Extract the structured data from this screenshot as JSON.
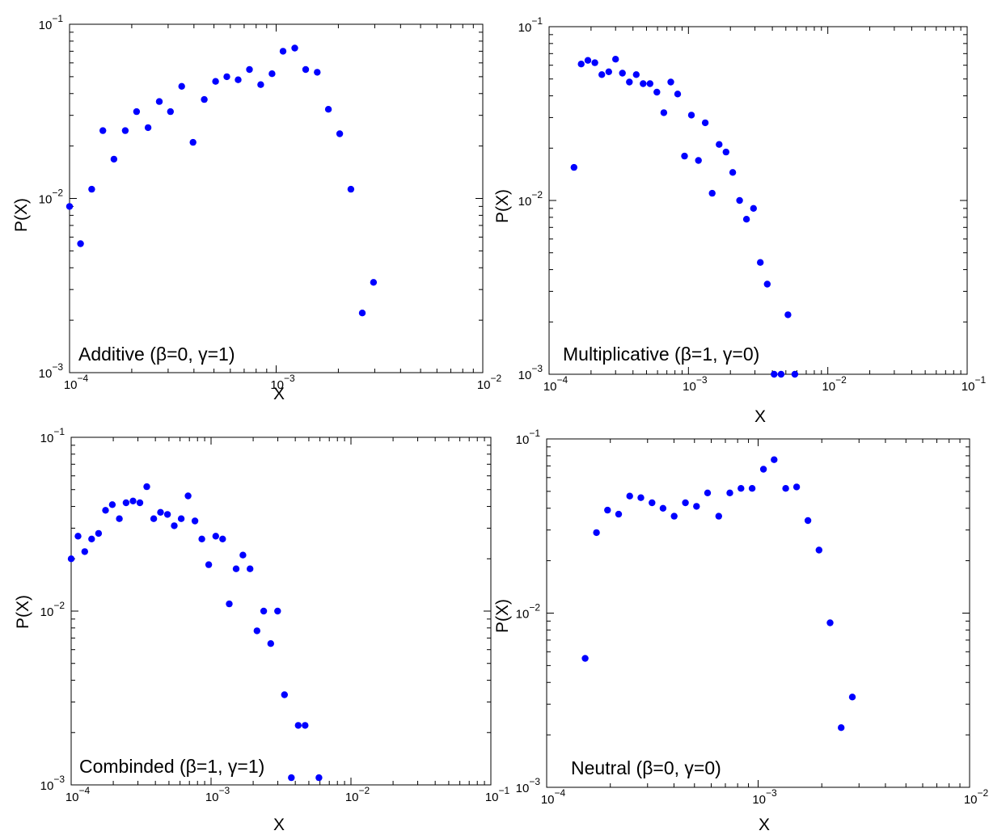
{
  "chart_data": [
    {
      "type": "scatter",
      "annotation": "Additive (β=0, γ=1)",
      "xlabel": "X",
      "ylabel": "P(X)",
      "xscale": "log",
      "yscale": "log",
      "xlim": [
        0.0001,
        0.01
      ],
      "ylim": [
        0.001,
        0.1
      ],
      "x_tick_labels": [
        {
          "base": "10",
          "exp": "−4"
        },
        {
          "base": "10",
          "exp": "−3"
        },
        {
          "base": "10",
          "exp": "−2"
        }
      ],
      "y_tick_labels": [
        {
          "base": "10",
          "exp": "−3"
        },
        {
          "base": "10",
          "exp": "−2"
        },
        {
          "base": "10",
          "exp": "−1"
        }
      ],
      "grid": false,
      "marker_color": "#0000ff",
      "points": [
        [
          0.0001,
          0.009
        ],
        [
          0.000113,
          0.0055
        ],
        [
          0.000128,
          0.0113
        ],
        [
          0.000145,
          0.0245
        ],
        [
          0.000164,
          0.0168
        ],
        [
          0.000186,
          0.0245
        ],
        [
          0.000211,
          0.0315
        ],
        [
          0.00024,
          0.0255
        ],
        [
          0.000272,
          0.036
        ],
        [
          0.000308,
          0.0315
        ],
        [
          0.000349,
          0.044
        ],
        [
          0.000396,
          0.021
        ],
        [
          0.000449,
          0.037
        ],
        [
          0.000509,
          0.047
        ],
        [
          0.000577,
          0.05
        ],
        [
          0.000655,
          0.048
        ],
        [
          0.000743,
          0.055
        ],
        [
          0.000842,
          0.045
        ],
        [
          0.000955,
          0.052
        ],
        [
          0.00108,
          0.07
        ],
        [
          0.00123,
          0.073
        ],
        [
          0.00139,
          0.055
        ],
        [
          0.00158,
          0.053
        ],
        [
          0.00179,
          0.0325
        ],
        [
          0.00203,
          0.0235
        ],
        [
          0.0023,
          0.0113
        ],
        [
          0.00261,
          0.0022
        ],
        [
          0.00296,
          0.0033
        ]
      ]
    },
    {
      "type": "scatter",
      "annotation": "Multiplicative (β=1, γ=0)",
      "xlabel": "X",
      "ylabel": "P(X)",
      "xscale": "log",
      "yscale": "log",
      "xlim": [
        0.0001,
        0.1
      ],
      "ylim": [
        0.001,
        0.1
      ],
      "x_tick_labels": [
        {
          "base": "10",
          "exp": "−4"
        },
        {
          "base": "10",
          "exp": "−3"
        },
        {
          "base": "10",
          "exp": "−2"
        },
        {
          "base": "10",
          "exp": "−1"
        }
      ],
      "y_tick_labels": [
        {
          "base": "10",
          "exp": "−3"
        },
        {
          "base": "10",
          "exp": "−2"
        },
        {
          "base": "10",
          "exp": "−1"
        }
      ],
      "grid": false,
      "marker_color": "#0000ff",
      "points": [
        [
          0.000151,
          0.0155
        ],
        [
          0.00017,
          0.061
        ],
        [
          0.00019,
          0.064
        ],
        [
          0.000213,
          0.062
        ],
        [
          0.000239,
          0.053
        ],
        [
          0.000268,
          0.055
        ],
        [
          0.0003,
          0.065
        ],
        [
          0.000336,
          0.054
        ],
        [
          0.000377,
          0.048
        ],
        [
          0.000422,
          0.053
        ],
        [
          0.000473,
          0.047
        ],
        [
          0.00053,
          0.047
        ],
        [
          0.000594,
          0.042
        ],
        [
          0.000666,
          0.032
        ],
        [
          0.000747,
          0.048
        ],
        [
          0.000837,
          0.041
        ],
        [
          0.000938,
          0.018
        ],
        [
          0.00105,
          0.031
        ],
        [
          0.00118,
          0.017
        ],
        [
          0.00132,
          0.028
        ],
        [
          0.00148,
          0.011
        ],
        [
          0.00166,
          0.021
        ],
        [
          0.00186,
          0.019
        ],
        [
          0.00208,
          0.0145
        ],
        [
          0.00233,
          0.01
        ],
        [
          0.00261,
          0.0078
        ],
        [
          0.00293,
          0.009
        ],
        [
          0.00328,
          0.0044
        ],
        [
          0.00368,
          0.0033
        ],
        [
          0.00412,
          0.001
        ],
        [
          0.00462,
          0.001
        ],
        [
          0.00518,
          0.0022
        ],
        [
          0.0058,
          0.001
        ]
      ]
    },
    {
      "type": "scatter",
      "annotation": "Combinded (β=1, γ=1)",
      "xlabel": "X",
      "ylabel": "P(X)",
      "xscale": "log",
      "yscale": "log",
      "xlim": [
        0.0001,
        0.1
      ],
      "ylim": [
        0.001,
        0.1
      ],
      "x_tick_labels": [
        {
          "base": "10",
          "exp": "−4"
        },
        {
          "base": "10",
          "exp": "−3"
        },
        {
          "base": "10",
          "exp": "−2"
        },
        {
          "base": "10",
          "exp": "−1"
        }
      ],
      "y_tick_labels": [
        {
          "base": "10",
          "exp": "−3"
        },
        {
          "base": "10",
          "exp": "−2"
        },
        {
          "base": "10",
          "exp": "−1"
        }
      ],
      "grid": false,
      "marker_color": "#0000ff",
      "points": [
        [
          0.0001,
          0.02
        ],
        [
          0.000112,
          0.027
        ],
        [
          0.000125,
          0.022
        ],
        [
          0.00014,
          0.026
        ],
        [
          0.000157,
          0.028
        ],
        [
          0.000176,
          0.038
        ],
        [
          0.000197,
          0.041
        ],
        [
          0.000221,
          0.034
        ],
        [
          0.000247,
          0.042
        ],
        [
          0.000277,
          0.043
        ],
        [
          0.00031,
          0.042
        ],
        [
          0.000347,
          0.052
        ],
        [
          0.000389,
          0.034
        ],
        [
          0.000435,
          0.037
        ],
        [
          0.000488,
          0.036
        ],
        [
          0.000546,
          0.031
        ],
        [
          0.000612,
          0.034
        ],
        [
          0.000685,
          0.046
        ],
        [
          0.000767,
          0.033
        ],
        [
          0.000859,
          0.026
        ],
        [
          0.000962,
          0.0185
        ],
        [
          0.00108,
          0.027
        ],
        [
          0.00121,
          0.026
        ],
        [
          0.00135,
          0.011
        ],
        [
          0.00151,
          0.0175
        ],
        [
          0.00169,
          0.021
        ],
        [
          0.0019,
          0.0175
        ],
        [
          0.00213,
          0.0077
        ],
        [
          0.00238,
          0.01
        ],
        [
          0.00267,
          0.0065
        ],
        [
          0.00299,
          0.01
        ],
        [
          0.00335,
          0.0033
        ],
        [
          0.00375,
          0.0011
        ],
        [
          0.0042,
          0.0022
        ],
        [
          0.0047,
          0.0022
        ],
        [
          0.0059,
          0.0011
        ]
      ]
    },
    {
      "type": "scatter",
      "annotation": "Neutral (β=0, γ=0)",
      "xlabel": "X",
      "ylabel": "P(X)",
      "xscale": "log",
      "yscale": "log",
      "xlim": [
        0.0001,
        0.01
      ],
      "ylim": [
        0.001,
        0.1
      ],
      "x_tick_labels": [
        {
          "base": "10",
          "exp": "−4"
        },
        {
          "base": "10",
          "exp": "−3"
        },
        {
          "base": "10",
          "exp": "−2"
        }
      ],
      "y_tick_labels": [
        {
          "base": "10",
          "exp": "−3"
        },
        {
          "base": "10",
          "exp": "−2"
        },
        {
          "base": "10",
          "exp": "−1"
        }
      ],
      "grid": false,
      "marker_color": "#0000ff",
      "points": [
        [
          0.000152,
          0.0055
        ],
        [
          0.000172,
          0.029
        ],
        [
          0.000194,
          0.039
        ],
        [
          0.000219,
          0.037
        ],
        [
          0.000247,
          0.047
        ],
        [
          0.000279,
          0.046
        ],
        [
          0.000315,
          0.043
        ],
        [
          0.000355,
          0.04
        ],
        [
          0.000401,
          0.036
        ],
        [
          0.000453,
          0.043
        ],
        [
          0.000511,
          0.041
        ],
        [
          0.000577,
          0.049
        ],
        [
          0.000651,
          0.036
        ],
        [
          0.000735,
          0.049
        ],
        [
          0.00083,
          0.052
        ],
        [
          0.000937,
          0.052
        ],
        [
          0.00106,
          0.067
        ],
        [
          0.00119,
          0.076
        ],
        [
          0.00135,
          0.052
        ],
        [
          0.00152,
          0.053
        ],
        [
          0.00172,
          0.034
        ],
        [
          0.00194,
          0.023
        ],
        [
          0.00219,
          0.0088
        ],
        [
          0.00247,
          0.0022
        ],
        [
          0.00279,
          0.0033
        ]
      ]
    }
  ]
}
